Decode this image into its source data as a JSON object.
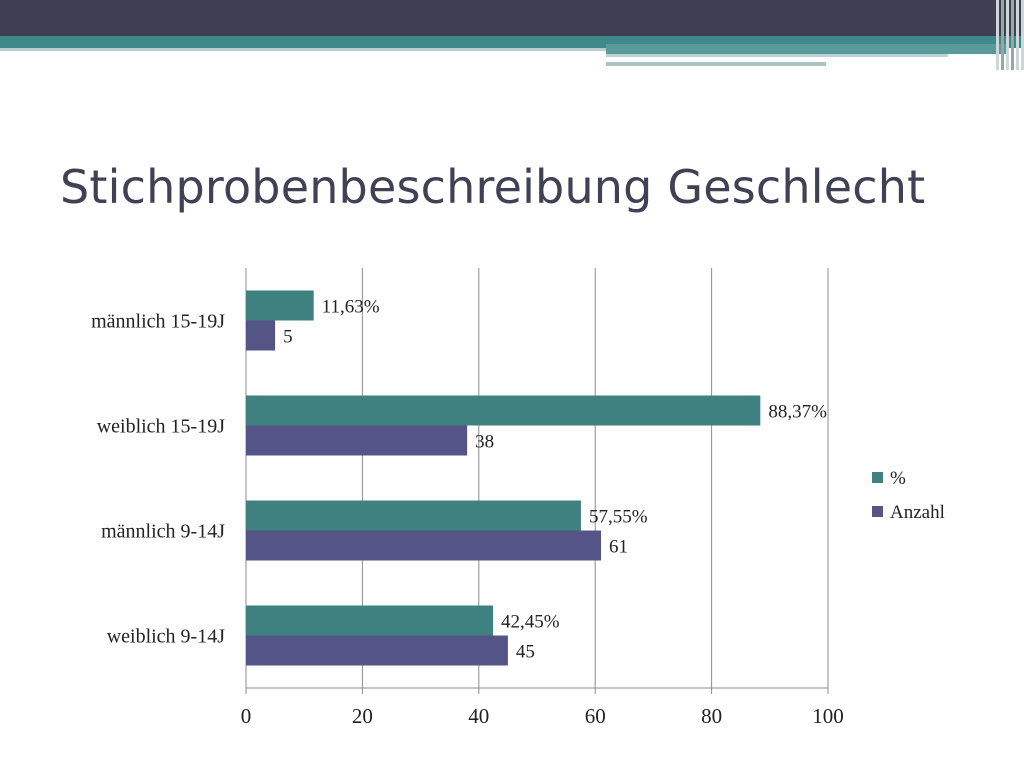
{
  "slide": {
    "title": "Stichprobenbeschreibung Geschlecht"
  },
  "chart_data": {
    "type": "bar",
    "orientation": "horizontal",
    "title": "",
    "xlabel": "",
    "ylabel": "",
    "categories": [
      "weiblich 9-14J",
      "männlich 9-14J",
      "weiblich 15-19J",
      "männlich 15-19J"
    ],
    "series": [
      {
        "name": "%",
        "color": "#3f8080",
        "values": [
          42.45,
          57.55,
          88.37,
          11.63
        ],
        "labels": [
          "42,45%",
          "57,55%",
          "88,37%",
          "11,63%"
        ]
      },
      {
        "name": "Anzahl",
        "color": "#545487",
        "values": [
          45,
          61,
          38,
          5
        ],
        "labels": [
          "45",
          "61",
          "38",
          "5"
        ]
      }
    ],
    "xlim": [
      0,
      100
    ],
    "xticks": [
      0,
      20,
      40,
      60,
      80,
      100
    ],
    "grid": true,
    "legend_position": "right"
  }
}
